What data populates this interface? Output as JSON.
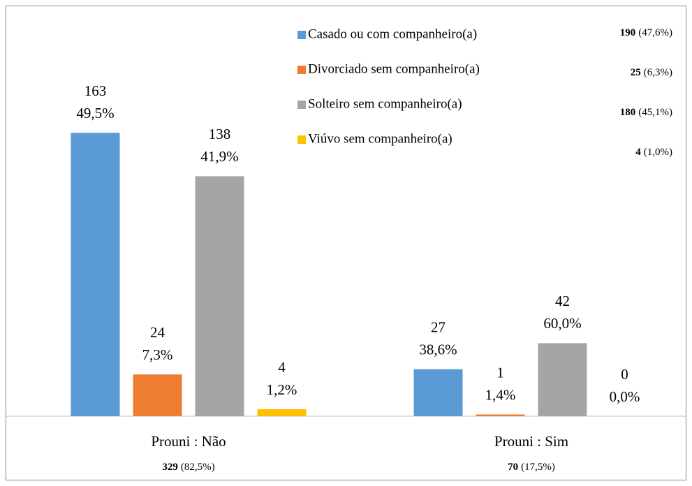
{
  "chart_data": {
    "type": "bar",
    "categories": [
      "Prouni : Não",
      "Prouni : Sim"
    ],
    "category_totals": [
      329,
      70
    ],
    "category_total_labels": [
      "(82,5%)",
      "(17,5%)"
    ],
    "series": [
      {
        "name": "Casado ou com companheiro(a)",
        "color": "#5b9bd5",
        "values": [
          163,
          27
        ],
        "percent_labels": [
          "49,5%",
          "38,6%"
        ],
        "total": 190,
        "total_label": "(47,6%)"
      },
      {
        "name": "Divorciado sem companheiro(a)",
        "color": "#ed7d31",
        "values": [
          24,
          1
        ],
        "percent_labels": [
          "7,3%",
          "1,4%"
        ],
        "total": 25,
        "total_label": "(6,3%)"
      },
      {
        "name": "Solteiro sem companheiro(a)",
        "color": "#a5a5a5",
        "values": [
          138,
          42
        ],
        "percent_labels": [
          "41,9%",
          "60,0%"
        ],
        "total": 180,
        "total_label": "(45,1%)"
      },
      {
        "name": "Viúvo sem companheiro(a)",
        "color": "#ffc000",
        "values": [
          4,
          0
        ],
        "percent_labels": [
          "1,2%",
          "0,0%"
        ],
        "total": 4,
        "total_label": "(1,0%)"
      }
    ],
    "ylim": [
      0,
      200
    ],
    "legend": "top-right"
  }
}
